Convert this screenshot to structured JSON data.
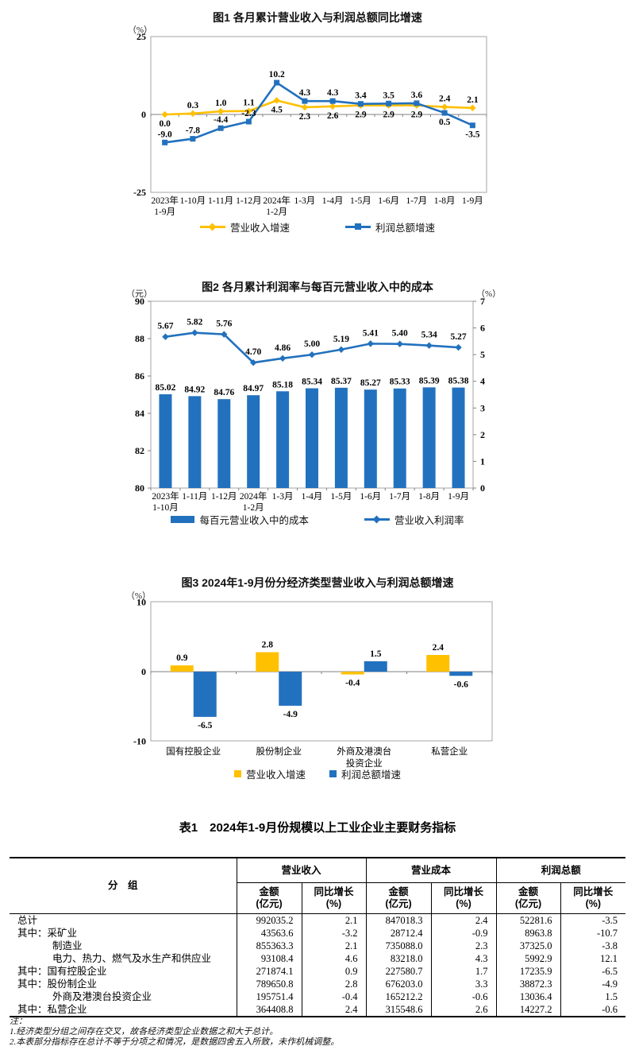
{
  "colors": {
    "orange": "#FFC000",
    "blue": "#2271BE",
    "axis": "#A6A6A6",
    "zero": "#808080"
  },
  "chart_data": [
    {
      "id": "chart1",
      "type": "line",
      "title": "图1  各月累计营业收入与利润总额同比增速",
      "unit_left": "（%）",
      "ylim": [
        -25,
        25
      ],
      "yticks": [
        25,
        0,
        -25
      ],
      "categories": [
        [
          "2023年",
          "1-9月"
        ],
        [
          "1-10月"
        ],
        [
          "1-11月"
        ],
        [
          "1-12月"
        ],
        [
          "2024年",
          "1-2月"
        ],
        [
          "1-3月"
        ],
        [
          "1-4月"
        ],
        [
          "1-5月"
        ],
        [
          "1-6月"
        ],
        [
          "1-7月"
        ],
        [
          "1-8月"
        ],
        [
          "1-9月"
        ]
      ],
      "series": [
        {
          "name": "营业收入增速",
          "color_key": "orange",
          "marker": "diamond",
          "values": [
            0.0,
            0.3,
            1.0,
            1.1,
            4.5,
            2.3,
            2.6,
            2.9,
            2.9,
            2.9,
            2.4,
            2.1
          ],
          "labels": [
            "0.0",
            "0.3",
            "1.0",
            "1.1",
            "4.5",
            "2.3",
            "2.6",
            "2.9",
            "2.9",
            "2.9",
            "2.4",
            "2.1"
          ],
          "label_side": [
            "below",
            "above",
            "above",
            "above",
            "below",
            "below",
            "below",
            "below",
            "below",
            "below",
            "above",
            "above"
          ]
        },
        {
          "name": "利润总额增速",
          "color_key": "blue",
          "marker": "square",
          "values": [
            -9.0,
            -7.8,
            -4.4,
            -2.3,
            10.2,
            4.3,
            4.3,
            3.4,
            3.5,
            3.6,
            0.5,
            -3.5
          ],
          "labels": [
            "-9.0",
            "-7.8",
            "-4.4",
            "-2.3",
            "10.2",
            "4.3",
            "4.3",
            "3.4",
            "3.5",
            "3.6",
            "0.5",
            "-3.5"
          ],
          "label_side": [
            "above",
            "above",
            "above",
            "above",
            "above",
            "above",
            "above",
            "above",
            "above",
            "above",
            "below",
            "below"
          ]
        }
      ],
      "legend_position": "bottom-center"
    },
    {
      "id": "chart2",
      "type": "bar-line",
      "title": "图2  各月累计利润率与每百元营业收入中的成本",
      "unit_left": "（元）",
      "unit_right": "（%）",
      "ylim_left": [
        80,
        90
      ],
      "yticks_left": [
        90,
        88,
        86,
        84,
        82,
        80
      ],
      "ylim_right": [
        0,
        7
      ],
      "yticks_right": [
        7,
        6,
        5,
        4,
        3,
        2,
        1,
        0
      ],
      "categories": [
        [
          "2023年",
          "1-10月"
        ],
        [
          "1-11月"
        ],
        [
          "1-12月"
        ],
        [
          "2024年",
          "1-2月"
        ],
        [
          "1-3月"
        ],
        [
          "1-4月"
        ],
        [
          "1-5月"
        ],
        [
          "1-6月"
        ],
        [
          "1-7月"
        ],
        [
          "1-8月"
        ],
        [
          "1-9月"
        ]
      ],
      "bars": {
        "name": "每百元营业收入中的成本",
        "color_key": "blue",
        "values": [
          85.02,
          84.92,
          84.76,
          84.97,
          85.18,
          85.34,
          85.37,
          85.27,
          85.33,
          85.39,
          85.38
        ],
        "labels": [
          "85.02",
          "84.92",
          "84.76",
          "84.97",
          "85.18",
          "85.34",
          "85.37",
          "85.27",
          "85.33",
          "85.39",
          "85.38"
        ]
      },
      "line": {
        "name": "营业收入利润率",
        "color_key": "blue",
        "marker": "diamond",
        "values": [
          5.67,
          5.82,
          5.76,
          4.7,
          4.86,
          5.0,
          5.19,
          5.41,
          5.4,
          5.34,
          5.27
        ],
        "labels": [
          "5.67",
          "5.82",
          "5.76",
          "4.70",
          "4.86",
          "5.00",
          "5.19",
          "5.41",
          "5.40",
          "5.34",
          "5.27"
        ]
      },
      "legend_position": "bottom-center"
    },
    {
      "id": "chart3",
      "type": "grouped-bar",
      "title": "图3  2024年1-9月份分经济类型营业收入与利润总额增速",
      "unit_left": "（%）",
      "ylim": [
        -10,
        10
      ],
      "yticks": [
        10,
        0,
        -10
      ],
      "categories": [
        [
          "国有控股企业"
        ],
        [
          "股份制企业"
        ],
        [
          "外商及港澳台",
          "投资企业"
        ],
        [
          "私营企业"
        ]
      ],
      "series": [
        {
          "name": "营业收入增速",
          "color_key": "orange",
          "values": [
            0.9,
            2.8,
            -0.4,
            2.4
          ],
          "labels": [
            "0.9",
            "2.8",
            "-0.4",
            "2.4"
          ]
        },
        {
          "name": "利润总额增速",
          "color_key": "blue",
          "values": [
            -6.5,
            -4.9,
            1.5,
            -0.6
          ],
          "labels": [
            "-6.5",
            "-4.9",
            "1.5",
            "-0.6"
          ]
        }
      ],
      "legend_position": "bottom-center"
    }
  ],
  "table": {
    "title": "表1　2024年1-9月份规模以上工业企业主要财务指标",
    "col_group_header": "分　组",
    "groups": [
      "营业收入",
      "营业成本",
      "利润总额"
    ],
    "sub": {
      "amount_line1": "金额",
      "amount_line2": "(亿元)",
      "growth_line1": "同比增长",
      "growth_line2": "(%)"
    },
    "rows": [
      {
        "label": "总计",
        "indent": 0,
        "values": [
          "992035.2",
          "2.1",
          "847018.3",
          "2.4",
          "52281.6",
          "-3.5"
        ]
      },
      {
        "label": "其中：采矿业",
        "indent": 0,
        "values": [
          "43563.6",
          "-3.2",
          "28712.4",
          "-0.9",
          "8963.8",
          "-10.7"
        ]
      },
      {
        "label": "制造业",
        "indent": 1,
        "values": [
          "855363.3",
          "2.1",
          "735088.0",
          "2.3",
          "37325.0",
          "-3.8"
        ]
      },
      {
        "label": "电力、热力、燃气及水生产和供应业",
        "indent": 1,
        "values": [
          "93108.4",
          "4.6",
          "83218.0",
          "4.3",
          "5992.9",
          "12.1"
        ]
      },
      {
        "label": "其中：国有控股企业",
        "indent": 0,
        "values": [
          "271874.1",
          "0.9",
          "227580.7",
          "1.7",
          "17235.9",
          "-6.5"
        ]
      },
      {
        "label": "其中：股份制企业",
        "indent": 0,
        "values": [
          "789650.8",
          "2.8",
          "676203.0",
          "3.3",
          "38872.3",
          "-4.9"
        ]
      },
      {
        "label": "外商及港澳台投资企业",
        "indent": 1,
        "values": [
          "195751.4",
          "-0.4",
          "165212.2",
          "-0.6",
          "13036.4",
          "1.5"
        ]
      },
      {
        "label": "其中：私营企业",
        "indent": 0,
        "values": [
          "364408.8",
          "2.4",
          "315548.6",
          "2.6",
          "14227.2",
          "-0.6"
        ]
      }
    ],
    "notes_label": "注：",
    "notes": [
      "1.经济类型分组之间存在交叉，故各经济类型企业数据之和大于总计。",
      "2.本表部分指标存在总计不等于分项之和情况，是数据四舍五入所致，未作机械调整。"
    ]
  }
}
